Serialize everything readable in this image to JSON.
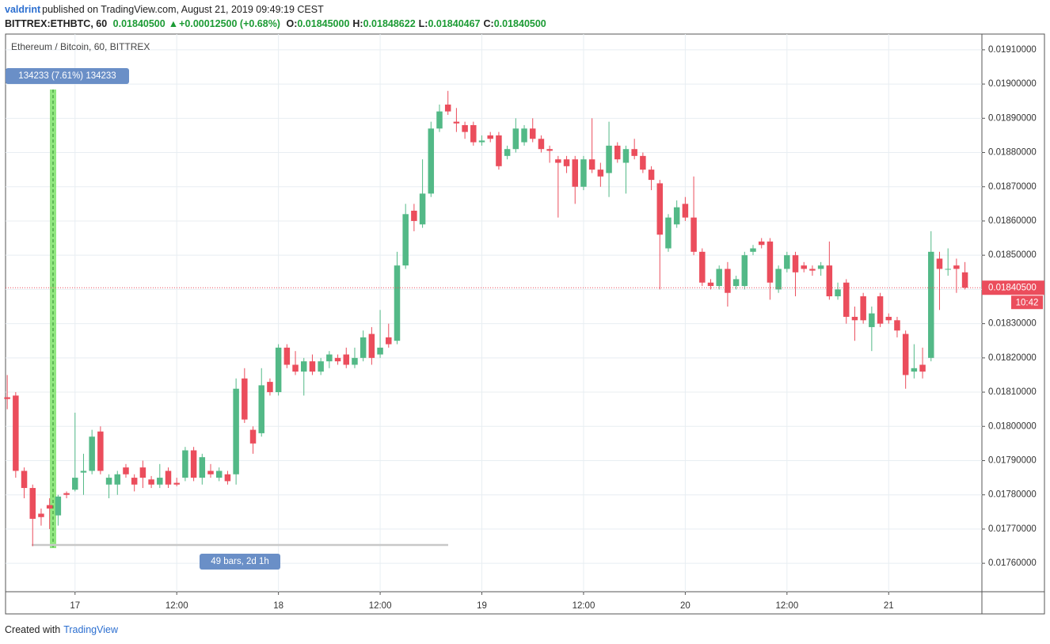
{
  "header": {
    "publisher": "valdrint",
    "published": "published on TradingView.com, August 21, 2019 09:49:19 CEST",
    "symbol": "BITTREX:ETHBTC, 60",
    "last": "0.01840500",
    "arrow": "▲",
    "change": "+0.00012500 (+0.68%)",
    "ohlc": [
      {
        "label": "O:",
        "value": "0.01845000"
      },
      {
        "label": "H:",
        "value": "0.01848622"
      },
      {
        "label": "L:",
        "value": "0.01840467"
      },
      {
        "label": "C:",
        "value": "0.01840500"
      }
    ]
  },
  "footer": {
    "created": "Created with",
    "brand": "TradingView"
  },
  "chart_data": {
    "type": "candlestick",
    "title": "Ethereum / Bitcoin, 60, BITTREX",
    "up_color": "#53b987",
    "down_color": "#eb4d5c",
    "grid": true,
    "xlim": [
      -0.2,
      115
    ],
    "ylim": [
      0.017517,
      0.019146
    ],
    "xticks": [
      {
        "value": 8,
        "label": "17"
      },
      {
        "value": 20,
        "label": "12:00"
      },
      {
        "value": 32,
        "label": "18"
      },
      {
        "value": 44,
        "label": "12:00"
      },
      {
        "value": 56,
        "label": "19"
      },
      {
        "value": 68,
        "label": "12:00"
      },
      {
        "value": 80,
        "label": "20"
      },
      {
        "value": 92,
        "label": "12:00"
      },
      {
        "value": 104,
        "label": "21"
      }
    ],
    "yticks": [
      {
        "value": 0.0176,
        "label": "0.01760000"
      },
      {
        "value": 0.0177,
        "label": "0.01770000"
      },
      {
        "value": 0.0178,
        "label": "0.01780000"
      },
      {
        "value": 0.0179,
        "label": "0.01790000"
      },
      {
        "value": 0.018,
        "label": "0.01800000"
      },
      {
        "value": 0.0181,
        "label": "0.01810000"
      },
      {
        "value": 0.0182,
        "label": "0.01820000"
      },
      {
        "value": 0.0183,
        "label": "0.01830000"
      },
      {
        "value": 0.0184,
        "label": "0.01840000"
      },
      {
        "value": 0.0185,
        "label": "0.01850000"
      },
      {
        "value": 0.0186,
        "label": "0.01860000"
      },
      {
        "value": 0.0187,
        "label": "0.01870000"
      },
      {
        "value": 0.0188,
        "label": "0.01880000"
      },
      {
        "value": 0.0189,
        "label": "0.01890000"
      },
      {
        "value": 0.019,
        "label": "0.01900000"
      },
      {
        "value": 0.0191,
        "label": "0.01910000"
      }
    ],
    "last_price": {
      "value": 0.018405,
      "label": "0.01840500"
    },
    "countdown": "10:42",
    "annotations": {
      "range": "134233 (7.61%) 134233",
      "bars": "49 bars, 2d 1h"
    },
    "open": [
      0.018085,
      0.01809,
      0.01787,
      0.01782,
      0.017745,
      0.01777,
      0.01774,
      0.017805,
      0.017815,
      0.017865,
      0.01787,
      0.017985,
      0.01783,
      0.01783,
      0.01788,
      0.01785,
      0.01788,
      0.017845,
      0.01783,
      0.01787,
      0.017835,
      0.01785,
      0.01793,
      0.01785,
      0.01787,
      0.01785,
      0.01786,
      0.01786,
      0.01814,
      0.01799,
      0.01798,
      0.01813,
      0.0181,
      0.01823,
      0.01818,
      0.01816,
      0.01819,
      0.01816,
      0.01819,
      0.0182,
      0.01821,
      0.01818,
      0.0182,
      0.01827,
      0.01821,
      0.01826,
      0.01825,
      0.01847,
      0.01863,
      0.01859,
      0.01868,
      0.01887,
      0.01894,
      0.01889,
      0.01888,
      0.01888,
      0.01883,
      0.01885,
      0.01885,
      0.01879,
      0.01881,
      0.01883,
      0.01887,
      0.01884,
      0.01881,
      0.01878,
      0.01878,
      0.01878,
      0.0187,
      0.01878,
      0.01875,
      0.01874,
      0.01882,
      0.01877,
      0.01881,
      0.01879,
      0.01875,
      0.01871,
      0.01852,
      0.01859,
      0.01865,
      0.01861,
      0.01851,
      0.01842,
      0.01841,
      0.01846,
      0.01841,
      0.01841,
      0.01851,
      0.01854,
      0.01854,
      0.0184,
      0.01846,
      0.0185,
      0.01847,
      0.01846,
      0.01846,
      0.01847,
      0.01838,
      0.01842,
      0.01832,
      0.01838,
      0.01829,
      0.01838,
      0.01832,
      0.01831,
      0.01827,
      0.01816,
      0.01818,
      0.0182,
      0.01849,
      0.01846,
      0.01847,
      0.01845
    ],
    "high": [
      0.01815,
      0.0181,
      0.01788,
      0.01783,
      0.01776,
      0.01779,
      0.0178,
      0.01781,
      0.01804,
      0.01792,
      0.01799,
      0.018,
      0.01786,
      0.01787,
      0.01789,
      0.01786,
      0.0179,
      0.017855,
      0.01789,
      0.01788,
      0.01785,
      0.01794,
      0.01794,
      0.01792,
      0.01789,
      0.01788,
      0.01787,
      0.01814,
      0.01817,
      0.018,
      0.01817,
      0.01814,
      0.01824,
      0.01824,
      0.01822,
      0.0182,
      0.01821,
      0.0182,
      0.01822,
      0.01821,
      0.01823,
      0.01823,
      0.01828,
      0.01829,
      0.01834,
      0.0183,
      0.01851,
      0.01865,
      0.01865,
      0.01878,
      0.01889,
      0.01894,
      0.01898,
      0.01893,
      0.01889,
      0.01889,
      0.01885,
      0.01886,
      0.01886,
      0.01882,
      0.0189,
      0.01888,
      0.0189,
      0.01885,
      0.01882,
      0.01879,
      0.01879,
      0.01879,
      0.01879,
      0.0189,
      0.01877,
      0.01889,
      0.01883,
      0.01882,
      0.01884,
      0.0188,
      0.01876,
      0.01872,
      0.01862,
      0.01866,
      0.01867,
      0.01873,
      0.01852,
      0.01843,
      0.01847,
      0.01848,
      0.01844,
      0.01851,
      0.01853,
      0.01855,
      0.01855,
      0.01847,
      0.01851,
      0.01851,
      0.01848,
      0.01847,
      0.01848,
      0.01854,
      0.01842,
      0.01843,
      0.01835,
      0.01839,
      0.01835,
      0.01839,
      0.01833,
      0.01832,
      0.01828,
      0.01824,
      0.01823,
      0.01857,
      0.01851,
      0.01852,
      0.01849,
      0.01848
    ],
    "low": [
      0.01805,
      0.01785,
      0.01779,
      0.01765,
      0.01771,
      0.0177,
      0.01771,
      0.01779,
      0.01781,
      0.0178,
      0.01786,
      0.01786,
      0.01779,
      0.0178,
      0.01785,
      0.01781,
      0.01782,
      0.01782,
      0.01782,
      0.01782,
      0.017825,
      0.01784,
      0.01784,
      0.01783,
      0.01785,
      0.01784,
      0.01783,
      0.01783,
      0.01801,
      0.01792,
      0.01797,
      0.01809,
      0.01809,
      0.01817,
      0.01815,
      0.01809,
      0.01815,
      0.01815,
      0.01817,
      0.01818,
      0.01817,
      0.01817,
      0.01819,
      0.01818,
      0.0182,
      0.01823,
      0.01824,
      0.01846,
      0.01857,
      0.01858,
      0.01867,
      0.01886,
      0.01891,
      0.01886,
      0.01884,
      0.01882,
      0.01882,
      0.01883,
      0.01875,
      0.01878,
      0.0188,
      0.01882,
      0.01883,
      0.0188,
      0.01877,
      0.01861,
      0.01874,
      0.01865,
      0.01869,
      0.01874,
      0.0187,
      0.01867,
      0.01877,
      0.01868,
      0.01878,
      0.01874,
      0.01869,
      0.0184,
      0.01851,
      0.01858,
      0.0186,
      0.0185,
      0.01841,
      0.0184,
      0.0184,
      0.01835,
      0.0184,
      0.0184,
      0.0185,
      0.01852,
      0.01837,
      0.01839,
      0.01845,
      0.01838,
      0.01845,
      0.01844,
      0.01844,
      0.01837,
      0.01837,
      0.0183,
      0.01825,
      0.0183,
      0.01822,
      0.01829,
      0.0183,
      0.01826,
      0.01811,
      0.01814,
      0.01814,
      0.01819,
      0.01834,
      0.01844,
      0.01839,
      0.0184
    ],
    "close": [
      0.01808,
      0.01787,
      0.01782,
      0.01773,
      0.017735,
      0.01776,
      0.017795,
      0.0178,
      0.01785,
      0.01787,
      0.01797,
      0.01787,
      0.01785,
      0.01786,
      0.01786,
      0.01783,
      0.01785,
      0.01783,
      0.01785,
      0.01783,
      0.01783,
      0.01793,
      0.01785,
      0.01791,
      0.01786,
      0.01787,
      0.01784,
      0.01811,
      0.01802,
      0.01795,
      0.01812,
      0.0181,
      0.01823,
      0.01818,
      0.01816,
      0.01819,
      0.01816,
      0.01819,
      0.01821,
      0.01819,
      0.01818,
      0.0182,
      0.01826,
      0.0182,
      0.01823,
      0.01824,
      0.01847,
      0.01862,
      0.0186,
      0.01868,
      0.01887,
      0.01892,
      0.01892,
      0.018885,
      0.01886,
      0.01883,
      0.018835,
      0.01884,
      0.01876,
      0.01881,
      0.01887,
      0.01887,
      0.01884,
      0.01881,
      0.018805,
      0.01877,
      0.01876,
      0.0187,
      0.01878,
      0.01875,
      0.01873,
      0.01882,
      0.01878,
      0.01881,
      0.01879,
      0.01875,
      0.01872,
      0.01856,
      0.01861,
      0.01864,
      0.01861,
      0.01851,
      0.01842,
      0.01841,
      0.01846,
      0.01839,
      0.01843,
      0.0185,
      0.01852,
      0.01853,
      0.01842,
      0.01846,
      0.0185,
      0.01845,
      0.01846,
      0.018455,
      0.01847,
      0.01838,
      0.0184,
      0.01832,
      0.01831,
      0.01831,
      0.01833,
      0.0183,
      0.01831,
      0.01828,
      0.01815,
      0.01817,
      0.01816,
      0.01851,
      0.01846,
      0.01846,
      0.01846,
      0.018405
    ]
  }
}
